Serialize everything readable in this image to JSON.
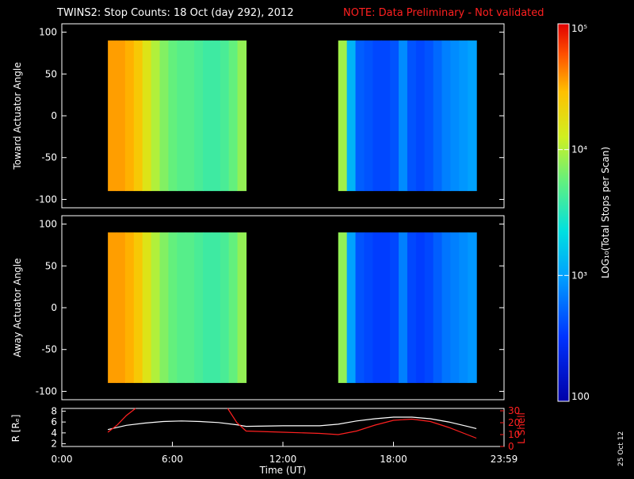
{
  "header": {
    "title": "TWINS2: Stop Counts: 18 Oct (day 292), 2012",
    "note": "NOTE: Data Preliminary - Not validated"
  },
  "date_stamp": "25 Oct 12",
  "colors": {
    "background": "#000000",
    "axes": "#ffffff",
    "note": "#ff2020",
    "lshell_line": "#ff2020",
    "r_line": "#ffffff"
  },
  "chart_data": [
    {
      "type": "heatmap",
      "name": "toward",
      "ylabel": "Toward Actuator Angle",
      "xlim": [
        0,
        24
      ],
      "ylim": [
        -110,
        110
      ],
      "yticks": [
        -100,
        -50,
        0,
        50,
        100
      ],
      "x_segments": [
        [
          2.5,
          10.0
        ],
        [
          15.0,
          22.5
        ]
      ],
      "y_extent": [
        -90,
        90
      ],
      "scale": "log",
      "approx_log_values": {
        "segment_1": [
          4.55,
          4.55,
          4.5,
          4.4,
          4.2,
          4.0,
          3.85,
          3.75,
          3.7,
          3.7,
          3.65,
          3.6,
          3.6,
          3.65,
          3.75,
          3.9
        ],
        "segment_2": [
          3.95,
          3.1,
          2.7,
          2.65,
          2.6,
          2.6,
          2.65,
          2.9,
          2.65,
          2.6,
          2.65,
          2.75,
          2.85,
          2.9,
          2.95,
          3.0
        ]
      }
    },
    {
      "type": "heatmap",
      "name": "away",
      "ylabel": "Away Actuator Angle",
      "xlim": [
        0,
        24
      ],
      "ylim": [
        -110,
        110
      ],
      "yticks": [
        -100,
        -50,
        0,
        50,
        100
      ],
      "x_segments": [
        [
          2.5,
          10.0
        ],
        [
          15.0,
          22.5
        ]
      ],
      "y_extent": [
        -90,
        90
      ],
      "scale": "log",
      "approx_log_values": {
        "segment_1": [
          4.55,
          4.55,
          4.5,
          4.4,
          4.2,
          4.0,
          3.85,
          3.75,
          3.7,
          3.7,
          3.65,
          3.6,
          3.6,
          3.65,
          3.75,
          3.9
        ],
        "segment_2": [
          3.9,
          3.0,
          2.65,
          2.6,
          2.55,
          2.55,
          2.6,
          2.85,
          2.6,
          2.55,
          2.6,
          2.7,
          2.8,
          2.85,
          2.9,
          2.95
        ]
      }
    },
    {
      "type": "line",
      "name": "orbit",
      "xlabel": "Time (UT)",
      "ylabel": "R [Rₑ]",
      "ylabel_right": "L Shell",
      "xlim": [
        0,
        24
      ],
      "xticks": [
        "0:00",
        "6:00",
        "12:00",
        "18:00",
        "23:59"
      ],
      "yticks_left": [
        2,
        4,
        6,
        8
      ],
      "ylim_left": [
        1.5,
        8.5
      ],
      "yticks_right": [
        0,
        10,
        20,
        30
      ],
      "ylim_right": [
        0,
        32
      ],
      "series": [
        {
          "axis": "left",
          "x": [
            2.5,
            3.5,
            4.5,
            5.5,
            6.5,
            7.5,
            8.5,
            9.5,
            10.0,
            12.0,
            14.0,
            15.0,
            16.0,
            17.0,
            18.0,
            19.0,
            20.0,
            21.0,
            22.0,
            22.5
          ],
          "y": [
            4.6,
            5.4,
            5.8,
            6.1,
            6.2,
            6.1,
            5.9,
            5.5,
            5.2,
            5.3,
            5.3,
            5.6,
            6.2,
            6.6,
            6.9,
            6.9,
            6.6,
            6.0,
            5.2,
            4.8
          ]
        },
        {
          "axis": "right",
          "x": [
            2.5,
            3.0,
            3.5,
            4.0
          ],
          "y": [
            12,
            18,
            26,
            32
          ]
        },
        {
          "axis": "right",
          "x": [
            9.0,
            9.5,
            10.0,
            12.0,
            14.0,
            15.0,
            16.0,
            17.0,
            18.0,
            19.0,
            20.0,
            21.0,
            22.0,
            22.5
          ],
          "y": [
            32,
            20,
            13,
            12,
            11,
            10,
            13,
            18,
            22,
            23,
            21,
            16,
            10,
            7
          ]
        }
      ]
    }
  ],
  "colorbar": {
    "label": "LOG₁₀(Total Stops per Scan)",
    "ticks": [
      "100",
      "10³",
      "10⁴",
      "10⁵"
    ],
    "range_log": [
      2,
      5
    ]
  }
}
